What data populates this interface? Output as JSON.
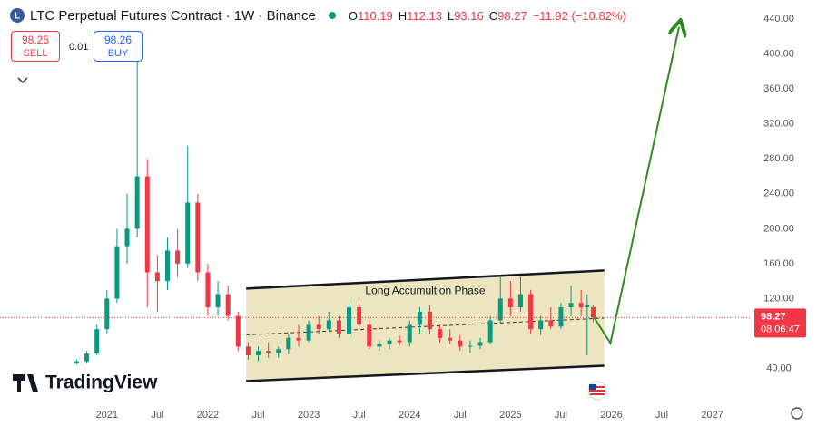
{
  "header": {
    "title": "LTC Perpetual Futures Contract · 1W · Binance",
    "o": "O",
    "h": "H",
    "l": "L",
    "c": "C",
    "change": "−11.92 (−10.82%)"
  },
  "trade": {
    "sell_price": 98.25,
    "sell": "SELL",
    "spread": 0.01,
    "buy_price": 98.26,
    "buy": "BUY"
  },
  "countdown": "08:06:47",
  "logo": "TradingView",
  "chart_data": {
    "type": "candlestick",
    "x": [
      2020.7,
      2020.8,
      2020.9,
      2021.0,
      2021.1,
      2021.2,
      2021.3,
      2021.4,
      2021.5,
      2021.6,
      2021.7,
      2021.8,
      2021.9,
      2022.0,
      2022.1,
      2022.2,
      2022.3,
      2022.4,
      2022.5,
      2022.6,
      2022.7,
      2022.8,
      2022.9,
      2023.0,
      2023.1,
      2023.2,
      2023.3,
      2023.4,
      2023.5,
      2023.6,
      2023.7,
      2023.8,
      2023.9,
      2024.0,
      2024.1,
      2024.2,
      2024.3,
      2024.4,
      2024.5,
      2024.6,
      2024.7,
      2024.8,
      2024.9,
      2025.0,
      2025.1,
      2025.2,
      2025.3,
      2025.4,
      2025.5,
      2025.6,
      2025.7,
      2025.76,
      2025.82
    ],
    "open": [
      46,
      48,
      57,
      85,
      120,
      180,
      200,
      260,
      150,
      140,
      175,
      160,
      230,
      150,
      110,
      125,
      100,
      65,
      55,
      60,
      58,
      62,
      75,
      72,
      90,
      85,
      95,
      80,
      110,
      90,
      65,
      68,
      72,
      70,
      90,
      105,
      85,
      75,
      72,
      65,
      66,
      70,
      95,
      120,
      110,
      125,
      85,
      95,
      88,
      110,
      115,
      110,
      110.19
    ],
    "high": [
      50,
      60,
      90,
      130,
      200,
      240,
      395,
      280,
      170,
      190,
      200,
      295,
      240,
      160,
      140,
      135,
      105,
      70,
      65,
      70,
      65,
      80,
      90,
      95,
      100,
      105,
      100,
      115,
      115,
      95,
      72,
      75,
      78,
      95,
      110,
      112,
      90,
      85,
      78,
      72,
      75,
      100,
      147,
      140,
      145,
      130,
      100,
      110,
      115,
      135,
      130,
      125,
      112.13
    ],
    "low": [
      44,
      46,
      55,
      80,
      115,
      160,
      190,
      110,
      105,
      130,
      145,
      155,
      140,
      100,
      100,
      95,
      60,
      50,
      48,
      52,
      52,
      56,
      65,
      70,
      80,
      82,
      75,
      78,
      85,
      62,
      60,
      62,
      66,
      65,
      80,
      80,
      70,
      68,
      60,
      58,
      62,
      68,
      92,
      100,
      105,
      80,
      78,
      85,
      85,
      100,
      100,
      55,
      93.16
    ],
    "close": [
      48,
      57,
      85,
      120,
      180,
      200,
      260,
      150,
      140,
      175,
      160,
      230,
      150,
      110,
      125,
      100,
      65,
      55,
      60,
      58,
      62,
      75,
      72,
      90,
      85,
      95,
      80,
      110,
      90,
      65,
      68,
      72,
      70,
      90,
      105,
      85,
      75,
      72,
      65,
      66,
      70,
      95,
      120,
      110,
      125,
      85,
      95,
      88,
      110,
      115,
      110,
      112,
      98.27
    ],
    "up_color": "#089981",
    "down_color": "#f23645",
    "xlim": [
      2019.94,
      2027.39
    ],
    "ylim": [
      0,
      462
    ],
    "xticks": [
      2021,
      {
        "value": 2021.5,
        "label": "Jul"
      },
      2022,
      {
        "value": 2022.5,
        "label": "Jul"
      },
      2023,
      {
        "value": 2023.5,
        "label": "Jul"
      },
      2024,
      {
        "value": 2024.5,
        "label": "Jul"
      },
      2025,
      {
        "value": 2025.5,
        "label": "Jul"
      },
      2026,
      {
        "value": 2026.5,
        "label": "Jul"
      },
      2027
    ],
    "yticks": [
      {
        "value": 40,
        "label": "40.00"
      },
      {
        "value": 80,
        "label": "80.00"
      },
      {
        "value": 120,
        "label": "120.00"
      },
      {
        "value": 160,
        "label": "160.00"
      },
      {
        "value": 200,
        "label": "200.00"
      },
      {
        "value": 240,
        "label": "240.00"
      },
      {
        "value": 280,
        "label": "280.00"
      },
      {
        "value": 320,
        "label": "320.00"
      },
      {
        "value": 360,
        "label": "360.00"
      },
      {
        "value": 400,
        "label": "400.00"
      },
      {
        "value": 440,
        "label": "440.00"
      }
    ],
    "grid": false,
    "annotation": "Long Accumultion Phase",
    "channel": {
      "x": [
        2022.38,
        2025.93
      ],
      "upper": [
        131.4,
        152.2
      ],
      "lower": [
        25.5,
        43.1
      ]
    },
    "projection": {
      "x": [
        2025.83,
        2025.99,
        2026.67
      ],
      "values": [
        98,
        69,
        431
      ],
      "color": "#2e8b20"
    }
  }
}
